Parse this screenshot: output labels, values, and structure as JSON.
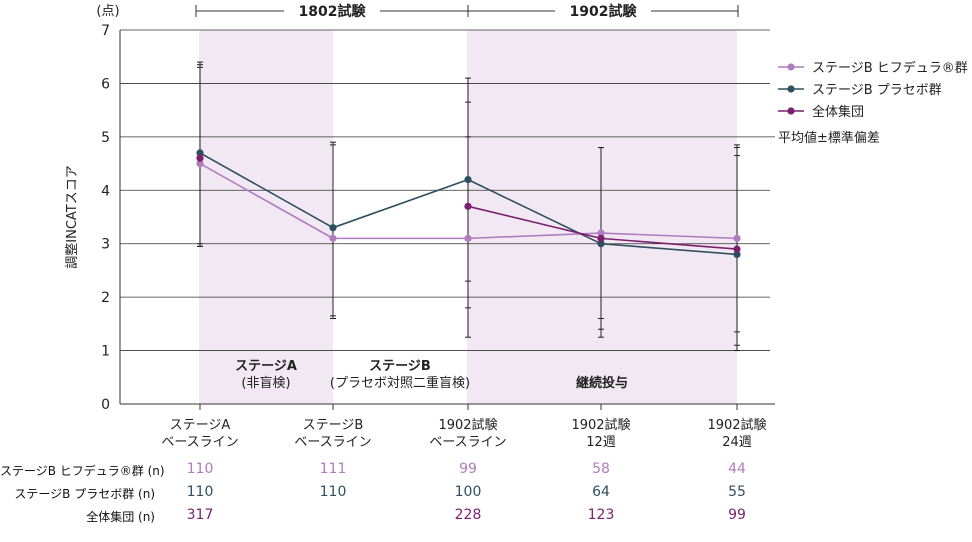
{
  "colors": {
    "hyqvia": "#b07cc0",
    "placebo": "#2f4f5f",
    "overall": "#7b1f6e",
    "shade": "#f2e8f3",
    "grid": "#333333"
  },
  "header": {
    "study1": "1802試験",
    "study2": "1902試験",
    "unit": "(点)"
  },
  "chart_data": {
    "type": "line",
    "ylabel": "調整INCATスコア",
    "ylim": [
      0,
      7
    ],
    "yticks": [
      "0",
      "1",
      "2",
      "3",
      "4",
      "5",
      "6",
      "7"
    ],
    "categories": [
      "ステージA\nベースライン",
      "ステージB\nベースライン",
      "1902試験\nベースライン",
      "1902試験\n12週",
      "1902試験\n24週"
    ],
    "series": [
      {
        "name": "ステージB ヒフデュラ®群",
        "color_key": "hyqvia",
        "values": [
          4.5,
          3.1,
          3.1,
          3.2,
          3.1
        ],
        "err_low": [
          3.0,
          1.65,
          1.8,
          1.6,
          1.35
        ],
        "err_high": [
          6.35,
          4.85,
          5.65,
          4.8,
          4.8
        ]
      },
      {
        "name": "ステージB プラセボ群",
        "color_key": "placebo",
        "values": [
          4.7,
          3.3,
          4.2,
          3.0,
          2.8
        ],
        "err_low": [
          2.95,
          1.6,
          2.3,
          1.25,
          1.0
        ],
        "err_high": [
          6.4,
          4.9,
          6.1,
          4.8,
          4.85
        ]
      },
      {
        "name": "全体集団",
        "color_key": "overall",
        "values": [
          4.6,
          null,
          3.7,
          3.1,
          2.9
        ],
        "err_low": [
          2.95,
          null,
          1.25,
          1.4,
          1.1
        ],
        "err_high": [
          6.3,
          null,
          5.0,
          4.8,
          4.65
        ]
      }
    ],
    "shaded_regions": [
      [
        0,
        0
      ],
      [
        2,
        4
      ]
    ],
    "annotations": {
      "stage_a": "ステージA",
      "stage_a_sub": "(非盲検)",
      "stage_b": "ステージB",
      "stage_b_sub": "(プラセボ対照二重盲検)",
      "continued": "継続投与"
    },
    "legend_note": "平均値±標準偏差"
  },
  "table": {
    "rows": [
      {
        "label": "ステージB ヒフデュラ®群 (n)",
        "color_key": "hyqvia",
        "values": [
          "110",
          "111",
          "99",
          "58",
          "44"
        ]
      },
      {
        "label": "ステージB プラセボ群 (n)",
        "color_key": "placebo",
        "values": [
          "110",
          "110",
          "100",
          "64",
          "55"
        ]
      },
      {
        "label": "全体集団 (n)",
        "color_key": "overall",
        "values": [
          "317",
          "",
          "228",
          "123",
          "99"
        ]
      }
    ]
  }
}
